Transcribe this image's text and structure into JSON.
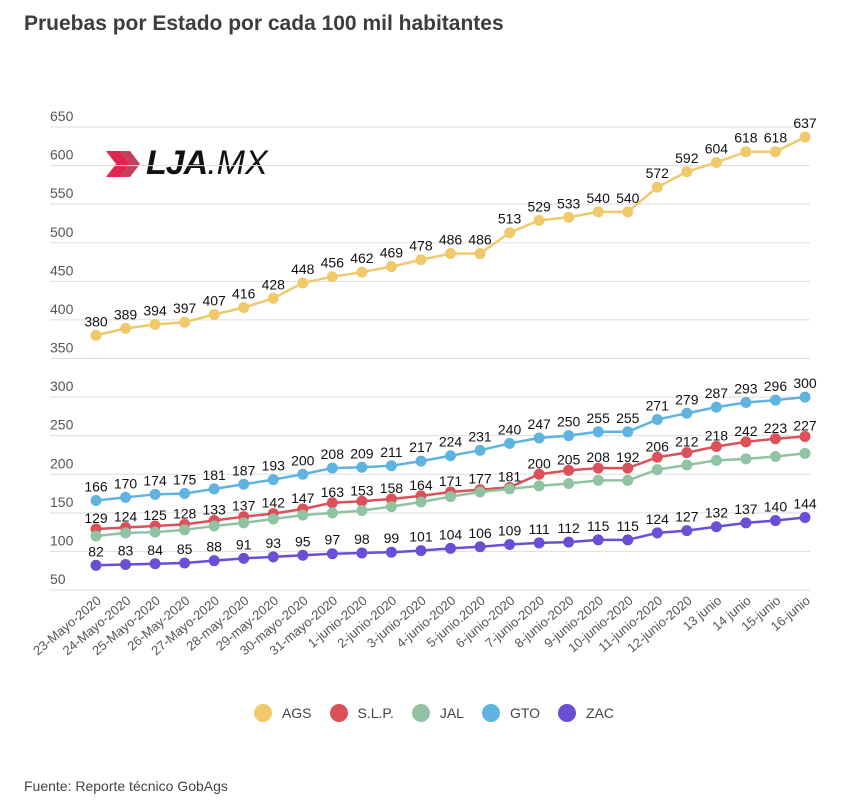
{
  "title": "Pruebas por Estado por cada 100 mil habitantes",
  "source": "Fuente: Reporte técnico GobAgs",
  "logo": {
    "brand": "LJA",
    "suffix": ".MX",
    "accent_color": "#e0254f"
  },
  "chart_data": {
    "type": "line",
    "title": "Pruebas por Estado por cada 100 mil habitantes",
    "xlabel": "",
    "ylabel": "",
    "ylim": [
      50,
      650
    ],
    "yticks": [
      50,
      100,
      150,
      200,
      250,
      300,
      350,
      400,
      450,
      500,
      550,
      600,
      650
    ],
    "grid": true,
    "legend_position": "bottom",
    "categories": [
      "23-Mayo-2020",
      "24-Mayo-2020",
      "25-Mayo-2020",
      "26-May-2020",
      "27-Mayo-2020",
      "28-may-2020",
      "29-may-2020",
      "30-mayo-2020",
      "31-mayo-2020",
      "1-junio-2020",
      "2-junio-2020",
      "3-junio-2020",
      "4-junio-2020",
      "5-junio.2020",
      "6-junio-2020",
      "7-junio-2020",
      "8-junio-2020",
      "9-junio-2020",
      "10-junio-2020",
      "11-junio-2020",
      "12-junio-2020",
      "13 junio",
      "14 junio",
      "15-junio",
      "16-junio"
    ],
    "series": [
      {
        "name": "AGS",
        "color": "#f0c96a",
        "show_labels": true,
        "values": [
          380,
          389,
          394,
          397,
          407,
          416,
          428,
          448,
          456,
          462,
          469,
          478,
          486,
          486,
          513,
          529,
          533,
          540,
          540,
          572,
          592,
          604,
          618,
          618,
          637
        ]
      },
      {
        "name": "S.L.P.",
        "color": "#dc5159",
        "show_labels": false,
        "values": [
          129,
          131,
          133,
          135,
          140,
          145,
          149,
          155,
          163,
          165,
          168,
          172,
          177,
          180,
          183,
          200,
          205,
          208,
          208,
          222,
          228,
          236,
          242,
          246,
          249
        ]
      },
      {
        "name": "JAL",
        "color": "#8fc3a2",
        "show_labels": false,
        "values": [
          120,
          124,
          125,
          128,
          133,
          137,
          142,
          147,
          150,
          153,
          158,
          164,
          171,
          177,
          181,
          185,
          188,
          192,
          192,
          206,
          212,
          218,
          220,
          223,
          227
        ]
      },
      {
        "name": "GTO",
        "color": "#5eb3e0",
        "show_labels": true,
        "values": [
          166,
          170,
          174,
          175,
          181,
          187,
          193,
          200,
          208,
          209,
          211,
          217,
          224,
          231,
          240,
          247,
          250,
          255,
          255,
          271,
          279,
          287,
          293,
          296,
          300
        ]
      },
      {
        "name": "ZAC",
        "color": "#6a4fd6",
        "show_labels": true,
        "values": [
          82,
          83,
          84,
          85,
          88,
          91,
          93,
          95,
          97,
          98,
          99,
          101,
          104,
          106,
          109,
          111,
          112,
          115,
          115,
          124,
          127,
          132,
          137,
          140,
          144
        ]
      }
    ],
    "annotations": {
      "visible_mixed_labels": [
        "129",
        "124",
        "125",
        "128",
        "133",
        "137",
        "142",
        "147",
        "163",
        "153",
        "158",
        "164",
        "171",
        "177",
        "181",
        "200",
        "205",
        "208",
        "192",
        "206",
        "212",
        "218",
        "242",
        "223",
        "227"
      ]
    }
  }
}
